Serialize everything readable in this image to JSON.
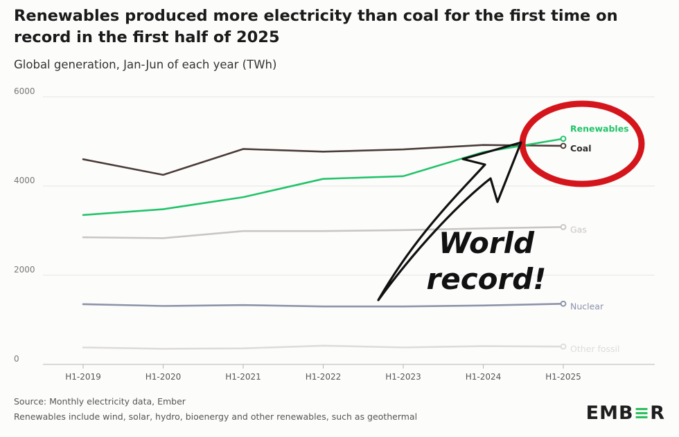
{
  "chart_data": {
    "type": "line",
    "title": "Renewables produced more electricity than coal for the first time on record in the first half of 2025",
    "subtitle": "Global generation, Jan-Jun of each year (TWh)",
    "categories": [
      "H1-2019",
      "H1-2020",
      "H1-2021",
      "H1-2022",
      "H1-2023",
      "H1-2024",
      "H1-2025"
    ],
    "ylim": [
      0,
      6000
    ],
    "yticks": [
      0,
      2000,
      4000,
      6000
    ],
    "grid": true,
    "series": [
      {
        "name": "Coal",
        "color": "#4a3b37",
        "values": [
          4600,
          4250,
          4830,
          4770,
          4820,
          4920,
          4900
        ]
      },
      {
        "name": "Renewables",
        "color": "#22c36a",
        "values": [
          3350,
          3480,
          3750,
          4160,
          4220,
          4760,
          5060
        ]
      },
      {
        "name": "Gas",
        "color": "#c9c5c4",
        "values": [
          2850,
          2830,
          2990,
          2990,
          3010,
          3050,
          3080
        ]
      },
      {
        "name": "Nuclear",
        "color": "#8c92a8",
        "values": [
          1350,
          1310,
          1330,
          1300,
          1300,
          1320,
          1360
        ]
      },
      {
        "name": "Other fossil",
        "color": "#dedcdb",
        "values": [
          380,
          350,
          360,
          420,
          380,
          410,
          400
        ]
      }
    ],
    "annotation": "World record!"
  },
  "footer": {
    "source": "Source: Monthly electricity data, Ember",
    "note": "Renewables include wind, solar, hydro, bioenergy and other renewables, such as geothermal"
  },
  "logo": {
    "part1": "EMB",
    "part2": "≡",
    "part3": "R"
  },
  "colors": {
    "annotation_circle": "#d4161c",
    "annotation_arrow": "#111111"
  }
}
